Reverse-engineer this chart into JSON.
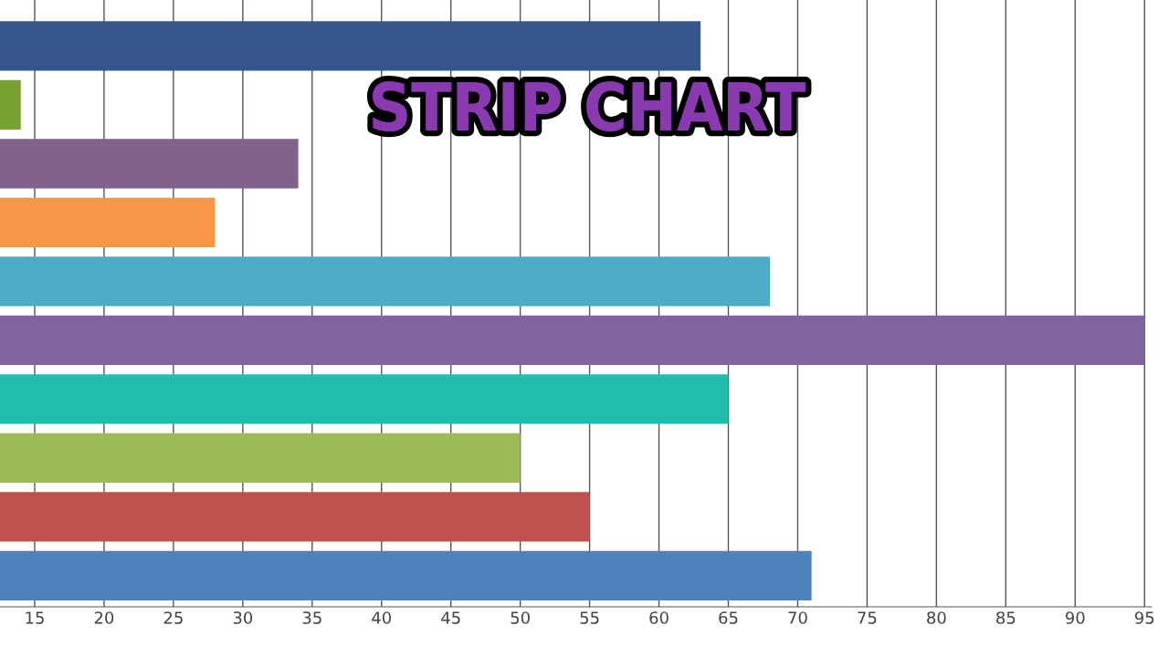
{
  "chart_data": {
    "type": "bar",
    "orientation": "horizontal",
    "title": "STRIP CHART",
    "categories": [
      null,
      null,
      null,
      null,
      null,
      null,
      null,
      null,
      null,
      null
    ],
    "values": [
      63,
      14,
      34,
      28,
      68,
      95,
      65,
      50,
      55,
      71
    ],
    "colors": [
      "#34568b",
      "#76a232",
      "#82618a",
      "#f79646",
      "#4bacc6",
      "#8064a2",
      "#21bfab",
      "#9bbb59",
      "#c0504d",
      "#4f81bd"
    ],
    "xlim": [
      12.5,
      95.5
    ],
    "xticks": [
      15,
      20,
      25,
      30,
      35,
      40,
      45,
      50,
      55,
      60,
      65,
      70,
      75,
      80,
      85,
      90,
      95
    ],
    "grid": "x",
    "tick_labels": "x"
  }
}
